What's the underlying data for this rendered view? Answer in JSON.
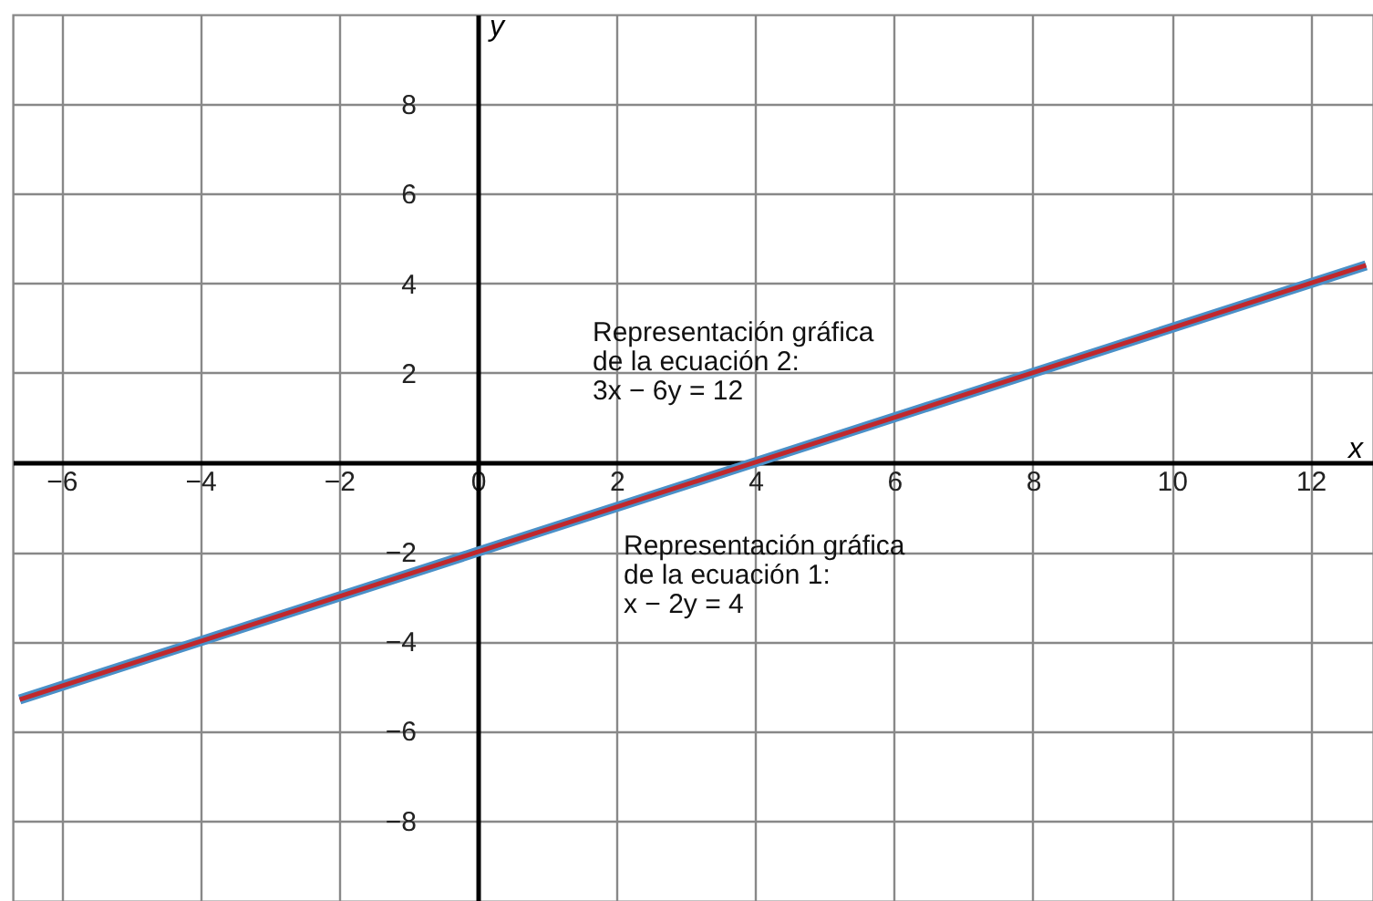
{
  "chart_data": {
    "type": "line",
    "xlabel": "x",
    "ylabel": "y",
    "xlim": [
      -6.7,
      12.9
    ],
    "ylim": [
      -9.8,
      10
    ],
    "xticks": [
      -6,
      -4,
      -2,
      0,
      2,
      4,
      6,
      8,
      10,
      12
    ],
    "yticks": [
      -8,
      -6,
      -4,
      -2,
      2,
      4,
      6,
      8
    ],
    "grid": true,
    "line_style": "solid",
    "marker": "none",
    "series": [
      {
        "color": "#4a90c8",
        "x": [
          -6.6,
          0,
          12.8
        ],
        "values": [
          -5.3,
          -2,
          4.4
        ]
      },
      {
        "color": "#c0282d",
        "x": [
          -6.6,
          0,
          12.8
        ],
        "values": [
          -5.3,
          -2,
          4.4
        ]
      }
    ],
    "annotations": [
      "Representación gráfica\nde la ecuación 2:\n3x − 6y = 12",
      "Representación gráfica\nde la ecuación 1:\nx − 2y = 4"
    ]
  }
}
